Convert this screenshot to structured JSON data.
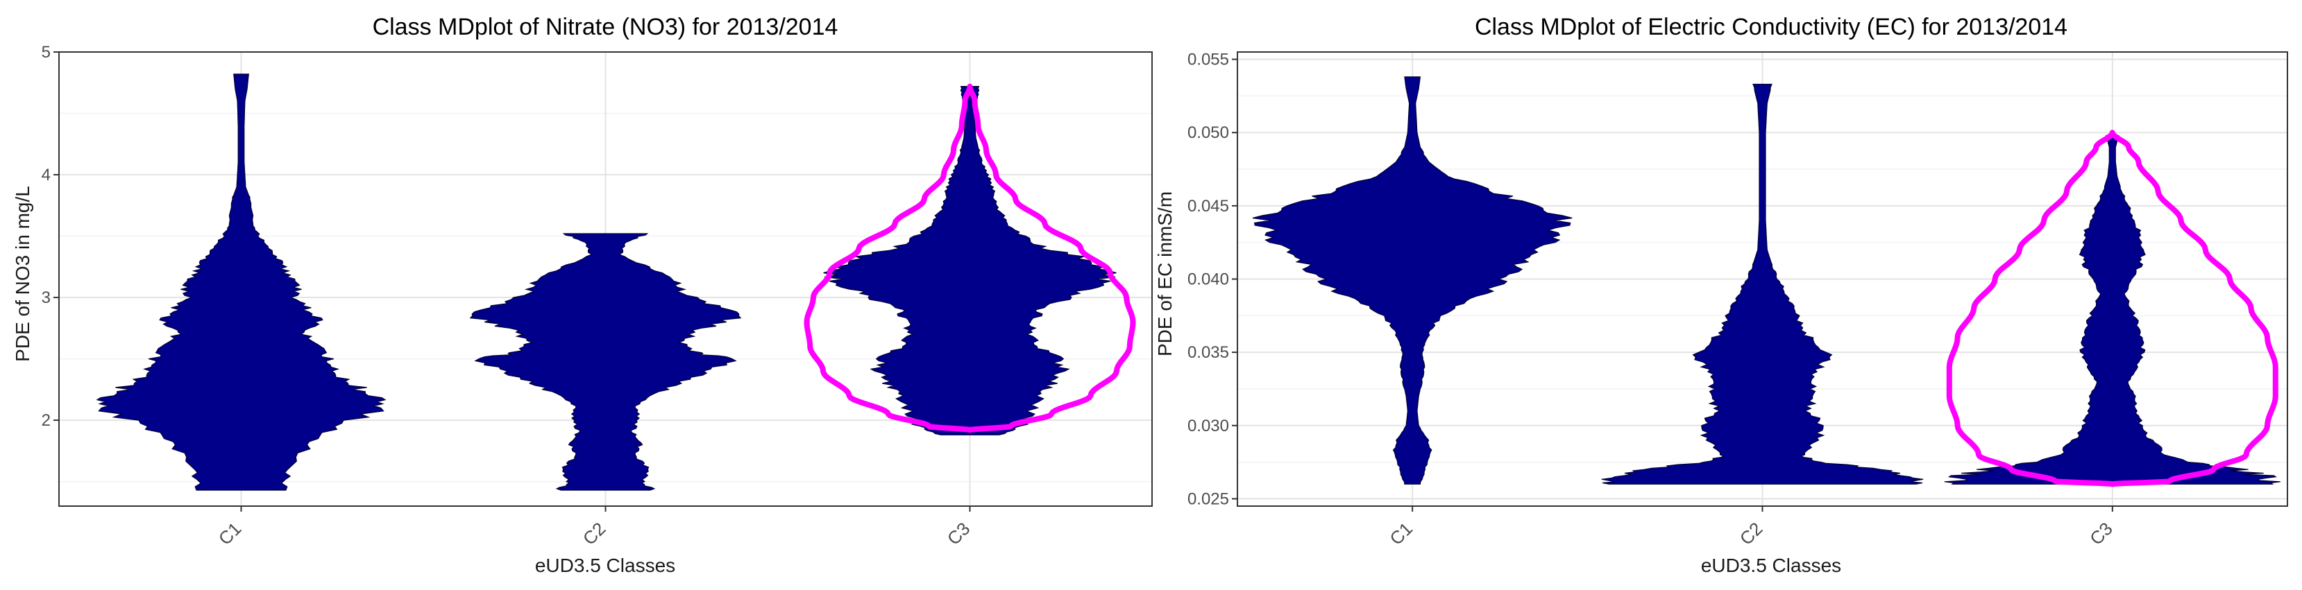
{
  "chart_data": [
    {
      "type": "violin",
      "title": "Class MDplot of Nitrate (NO3) for 2013/2014",
      "xlabel": "eUD3.5 Classes",
      "ylabel": "PDE of NO3 in mg/L",
      "categories": [
        "C1",
        "C2",
        "C3"
      ],
      "ylim": [
        1.3,
        5.0
      ],
      "yticks": [
        2,
        3,
        4,
        5
      ],
      "grid": true,
      "fill_color": "#00008B",
      "highlight_color": "#FF00FF",
      "highlight_category": "C3",
      "violins": [
        {
          "category": "C1",
          "min": 1.43,
          "max": 4.82,
          "profile": [
            [
              1.43,
              0.28
            ],
            [
              1.6,
              0.32
            ],
            [
              1.8,
              0.45
            ],
            [
              1.95,
              0.65
            ],
            [
              2.1,
              0.95
            ],
            [
              2.2,
              0.92
            ],
            [
              2.3,
              0.7
            ],
            [
              2.4,
              0.62
            ],
            [
              2.5,
              0.6
            ],
            [
              2.6,
              0.5
            ],
            [
              2.7,
              0.42
            ],
            [
              2.8,
              0.52
            ],
            [
              2.9,
              0.45
            ],
            [
              3.0,
              0.36
            ],
            [
              3.1,
              0.38
            ],
            [
              3.2,
              0.3
            ],
            [
              3.3,
              0.26
            ],
            [
              3.4,
              0.2
            ],
            [
              3.5,
              0.12
            ],
            [
              3.6,
              0.08
            ],
            [
              3.8,
              0.06
            ],
            [
              3.9,
              0.03
            ],
            [
              4.1,
              0.02
            ],
            [
              4.4,
              0.02
            ],
            [
              4.6,
              0.025
            ],
            [
              4.7,
              0.04
            ],
            [
              4.82,
              0.05
            ]
          ]
        },
        {
          "category": "C2",
          "min": 1.43,
          "max": 3.52,
          "profile": [
            [
              1.43,
              0.32
            ],
            [
              1.5,
              0.25
            ],
            [
              1.6,
              0.3
            ],
            [
              1.7,
              0.2
            ],
            [
              1.8,
              0.24
            ],
            [
              1.9,
              0.18
            ],
            [
              2.0,
              0.22
            ],
            [
              2.1,
              0.2
            ],
            [
              2.2,
              0.3
            ],
            [
              2.3,
              0.5
            ],
            [
              2.4,
              0.7
            ],
            [
              2.5,
              0.85
            ],
            [
              2.55,
              0.6
            ],
            [
              2.65,
              0.5
            ],
            [
              2.75,
              0.65
            ],
            [
              2.85,
              0.95
            ],
            [
              2.95,
              0.68
            ],
            [
              3.05,
              0.5
            ],
            [
              3.15,
              0.46
            ],
            [
              3.25,
              0.28
            ],
            [
              3.35,
              0.1
            ],
            [
              3.45,
              0.14
            ],
            [
              3.52,
              0.28
            ]
          ]
        },
        {
          "category": "C3",
          "min": 1.88,
          "max": 4.72,
          "profile": [
            [
              1.88,
              0.2
            ],
            [
              1.95,
              0.35
            ],
            [
              2.05,
              0.4
            ],
            [
              2.2,
              0.48
            ],
            [
              2.3,
              0.55
            ],
            [
              2.4,
              0.62
            ],
            [
              2.5,
              0.6
            ],
            [
              2.6,
              0.45
            ],
            [
              2.7,
              0.4
            ],
            [
              2.8,
              0.42
            ],
            [
              2.9,
              0.48
            ],
            [
              3.0,
              0.65
            ],
            [
              3.1,
              0.85
            ],
            [
              3.2,
              0.98
            ],
            [
              3.3,
              0.85
            ],
            [
              3.4,
              0.5
            ],
            [
              3.5,
              0.35
            ],
            [
              3.6,
              0.25
            ],
            [
              3.7,
              0.2
            ],
            [
              3.8,
              0.17
            ],
            [
              3.9,
              0.15
            ],
            [
              4.0,
              0.12
            ],
            [
              4.1,
              0.08
            ],
            [
              4.2,
              0.06
            ],
            [
              4.3,
              0.04
            ],
            [
              4.5,
              0.03
            ],
            [
              4.62,
              0.05
            ],
            [
              4.72,
              0.06
            ]
          ]
        }
      ],
      "highlight_shape": {
        "category": "C3",
        "min": 1.92,
        "max": 4.72,
        "profile": [
          [
            1.92,
            0.0
          ],
          [
            1.95,
            0.25
          ],
          [
            2.05,
            0.5
          ],
          [
            2.2,
            0.74
          ],
          [
            2.4,
            0.9
          ],
          [
            2.6,
            0.98
          ],
          [
            2.8,
            1.0
          ],
          [
            3.0,
            0.96
          ],
          [
            3.2,
            0.86
          ],
          [
            3.4,
            0.68
          ],
          [
            3.6,
            0.46
          ],
          [
            3.8,
            0.28
          ],
          [
            4.0,
            0.16
          ],
          [
            4.2,
            0.1
          ],
          [
            4.4,
            0.05
          ],
          [
            4.6,
            0.03
          ],
          [
            4.72,
            0.0
          ]
        ]
      }
    },
    {
      "type": "violin",
      "title": "Class MDplot of Electric Conductivity (EC) for 2013/2014",
      "xlabel": "eUD3.5 Classes",
      "ylabel": "PDE of EC inmS/m",
      "categories": [
        "C1",
        "C2",
        "C3"
      ],
      "ylim": [
        0.0245,
        0.0555
      ],
      "yticks": [
        "0.025",
        "0.030",
        "0.035",
        "0.040",
        "0.045",
        "0.050",
        "0.055"
      ],
      "grid": true,
      "fill_color": "#00008B",
      "highlight_color": "#FF00FF",
      "highlight_category": "C3",
      "violins": [
        {
          "category": "C1",
          "min": 0.026,
          "max": 0.0538,
          "profile": [
            [
              0.026,
              0.05
            ],
            [
              0.027,
              0.08
            ],
            [
              0.028,
              0.12
            ],
            [
              0.029,
              0.1
            ],
            [
              0.03,
              0.04
            ],
            [
              0.031,
              0.03
            ],
            [
              0.032,
              0.04
            ],
            [
              0.033,
              0.06
            ],
            [
              0.034,
              0.08
            ],
            [
              0.035,
              0.06
            ],
            [
              0.036,
              0.1
            ],
            [
              0.037,
              0.14
            ],
            [
              0.038,
              0.25
            ],
            [
              0.039,
              0.45
            ],
            [
              0.04,
              0.6
            ],
            [
              0.041,
              0.7
            ],
            [
              0.042,
              0.82
            ],
            [
              0.043,
              0.9
            ],
            [
              0.044,
              0.98
            ],
            [
              0.045,
              0.8
            ],
            [
              0.046,
              0.5
            ],
            [
              0.047,
              0.25
            ],
            [
              0.048,
              0.1
            ],
            [
              0.049,
              0.05
            ],
            [
              0.05,
              0.03
            ],
            [
              0.052,
              0.02
            ],
            [
              0.053,
              0.04
            ],
            [
              0.0538,
              0.05
            ]
          ]
        },
        {
          "category": "C2",
          "min": 0.026,
          "max": 0.0533,
          "profile": [
            [
              0.026,
              1.0
            ],
            [
              0.0265,
              0.95
            ],
            [
              0.027,
              0.8
            ],
            [
              0.0275,
              0.35
            ],
            [
              0.028,
              0.25
            ],
            [
              0.029,
              0.35
            ],
            [
              0.03,
              0.4
            ],
            [
              0.031,
              0.28
            ],
            [
              0.032,
              0.35
            ],
            [
              0.033,
              0.3
            ],
            [
              0.034,
              0.38
            ],
            [
              0.035,
              0.42
            ],
            [
              0.036,
              0.3
            ],
            [
              0.037,
              0.24
            ],
            [
              0.038,
              0.2
            ],
            [
              0.039,
              0.15
            ],
            [
              0.04,
              0.1
            ],
            [
              0.041,
              0.06
            ],
            [
              0.042,
              0.03
            ],
            [
              0.044,
              0.02
            ],
            [
              0.046,
              0.02
            ],
            [
              0.048,
              0.02
            ],
            [
              0.05,
              0.02
            ],
            [
              0.052,
              0.03
            ],
            [
              0.0533,
              0.06
            ]
          ]
        },
        {
          "category": "C3",
          "min": 0.026,
          "max": 0.0498,
          "profile": [
            [
              0.026,
              1.0
            ],
            [
              0.0265,
              0.98
            ],
            [
              0.027,
              0.8
            ],
            [
              0.0275,
              0.5
            ],
            [
              0.028,
              0.35
            ],
            [
              0.029,
              0.24
            ],
            [
              0.03,
              0.18
            ],
            [
              0.031,
              0.16
            ],
            [
              0.032,
              0.14
            ],
            [
              0.033,
              0.1
            ],
            [
              0.034,
              0.16
            ],
            [
              0.035,
              0.2
            ],
            [
              0.036,
              0.18
            ],
            [
              0.037,
              0.16
            ],
            [
              0.038,
              0.12
            ],
            [
              0.039,
              0.08
            ],
            [
              0.04,
              0.12
            ],
            [
              0.041,
              0.18
            ],
            [
              0.042,
              0.2
            ],
            [
              0.043,
              0.18
            ],
            [
              0.044,
              0.14
            ],
            [
              0.045,
              0.1
            ],
            [
              0.046,
              0.06
            ],
            [
              0.047,
              0.03
            ],
            [
              0.048,
              0.02
            ],
            [
              0.049,
              0.02
            ],
            [
              0.0498,
              0.04
            ]
          ]
        }
      ],
      "highlight_shape": {
        "category": "C3",
        "min": 0.026,
        "max": 0.05,
        "profile": [
          [
            0.026,
            0.0
          ],
          [
            0.0262,
            0.35
          ],
          [
            0.027,
            0.62
          ],
          [
            0.028,
            0.82
          ],
          [
            0.03,
            0.95
          ],
          [
            0.032,
            1.0
          ],
          [
            0.034,
            1.0
          ],
          [
            0.036,
            0.95
          ],
          [
            0.038,
            0.85
          ],
          [
            0.04,
            0.72
          ],
          [
            0.042,
            0.57
          ],
          [
            0.044,
            0.42
          ],
          [
            0.046,
            0.28
          ],
          [
            0.048,
            0.16
          ],
          [
            0.049,
            0.1
          ],
          [
            0.05,
            0.0
          ]
        ]
      }
    }
  ]
}
